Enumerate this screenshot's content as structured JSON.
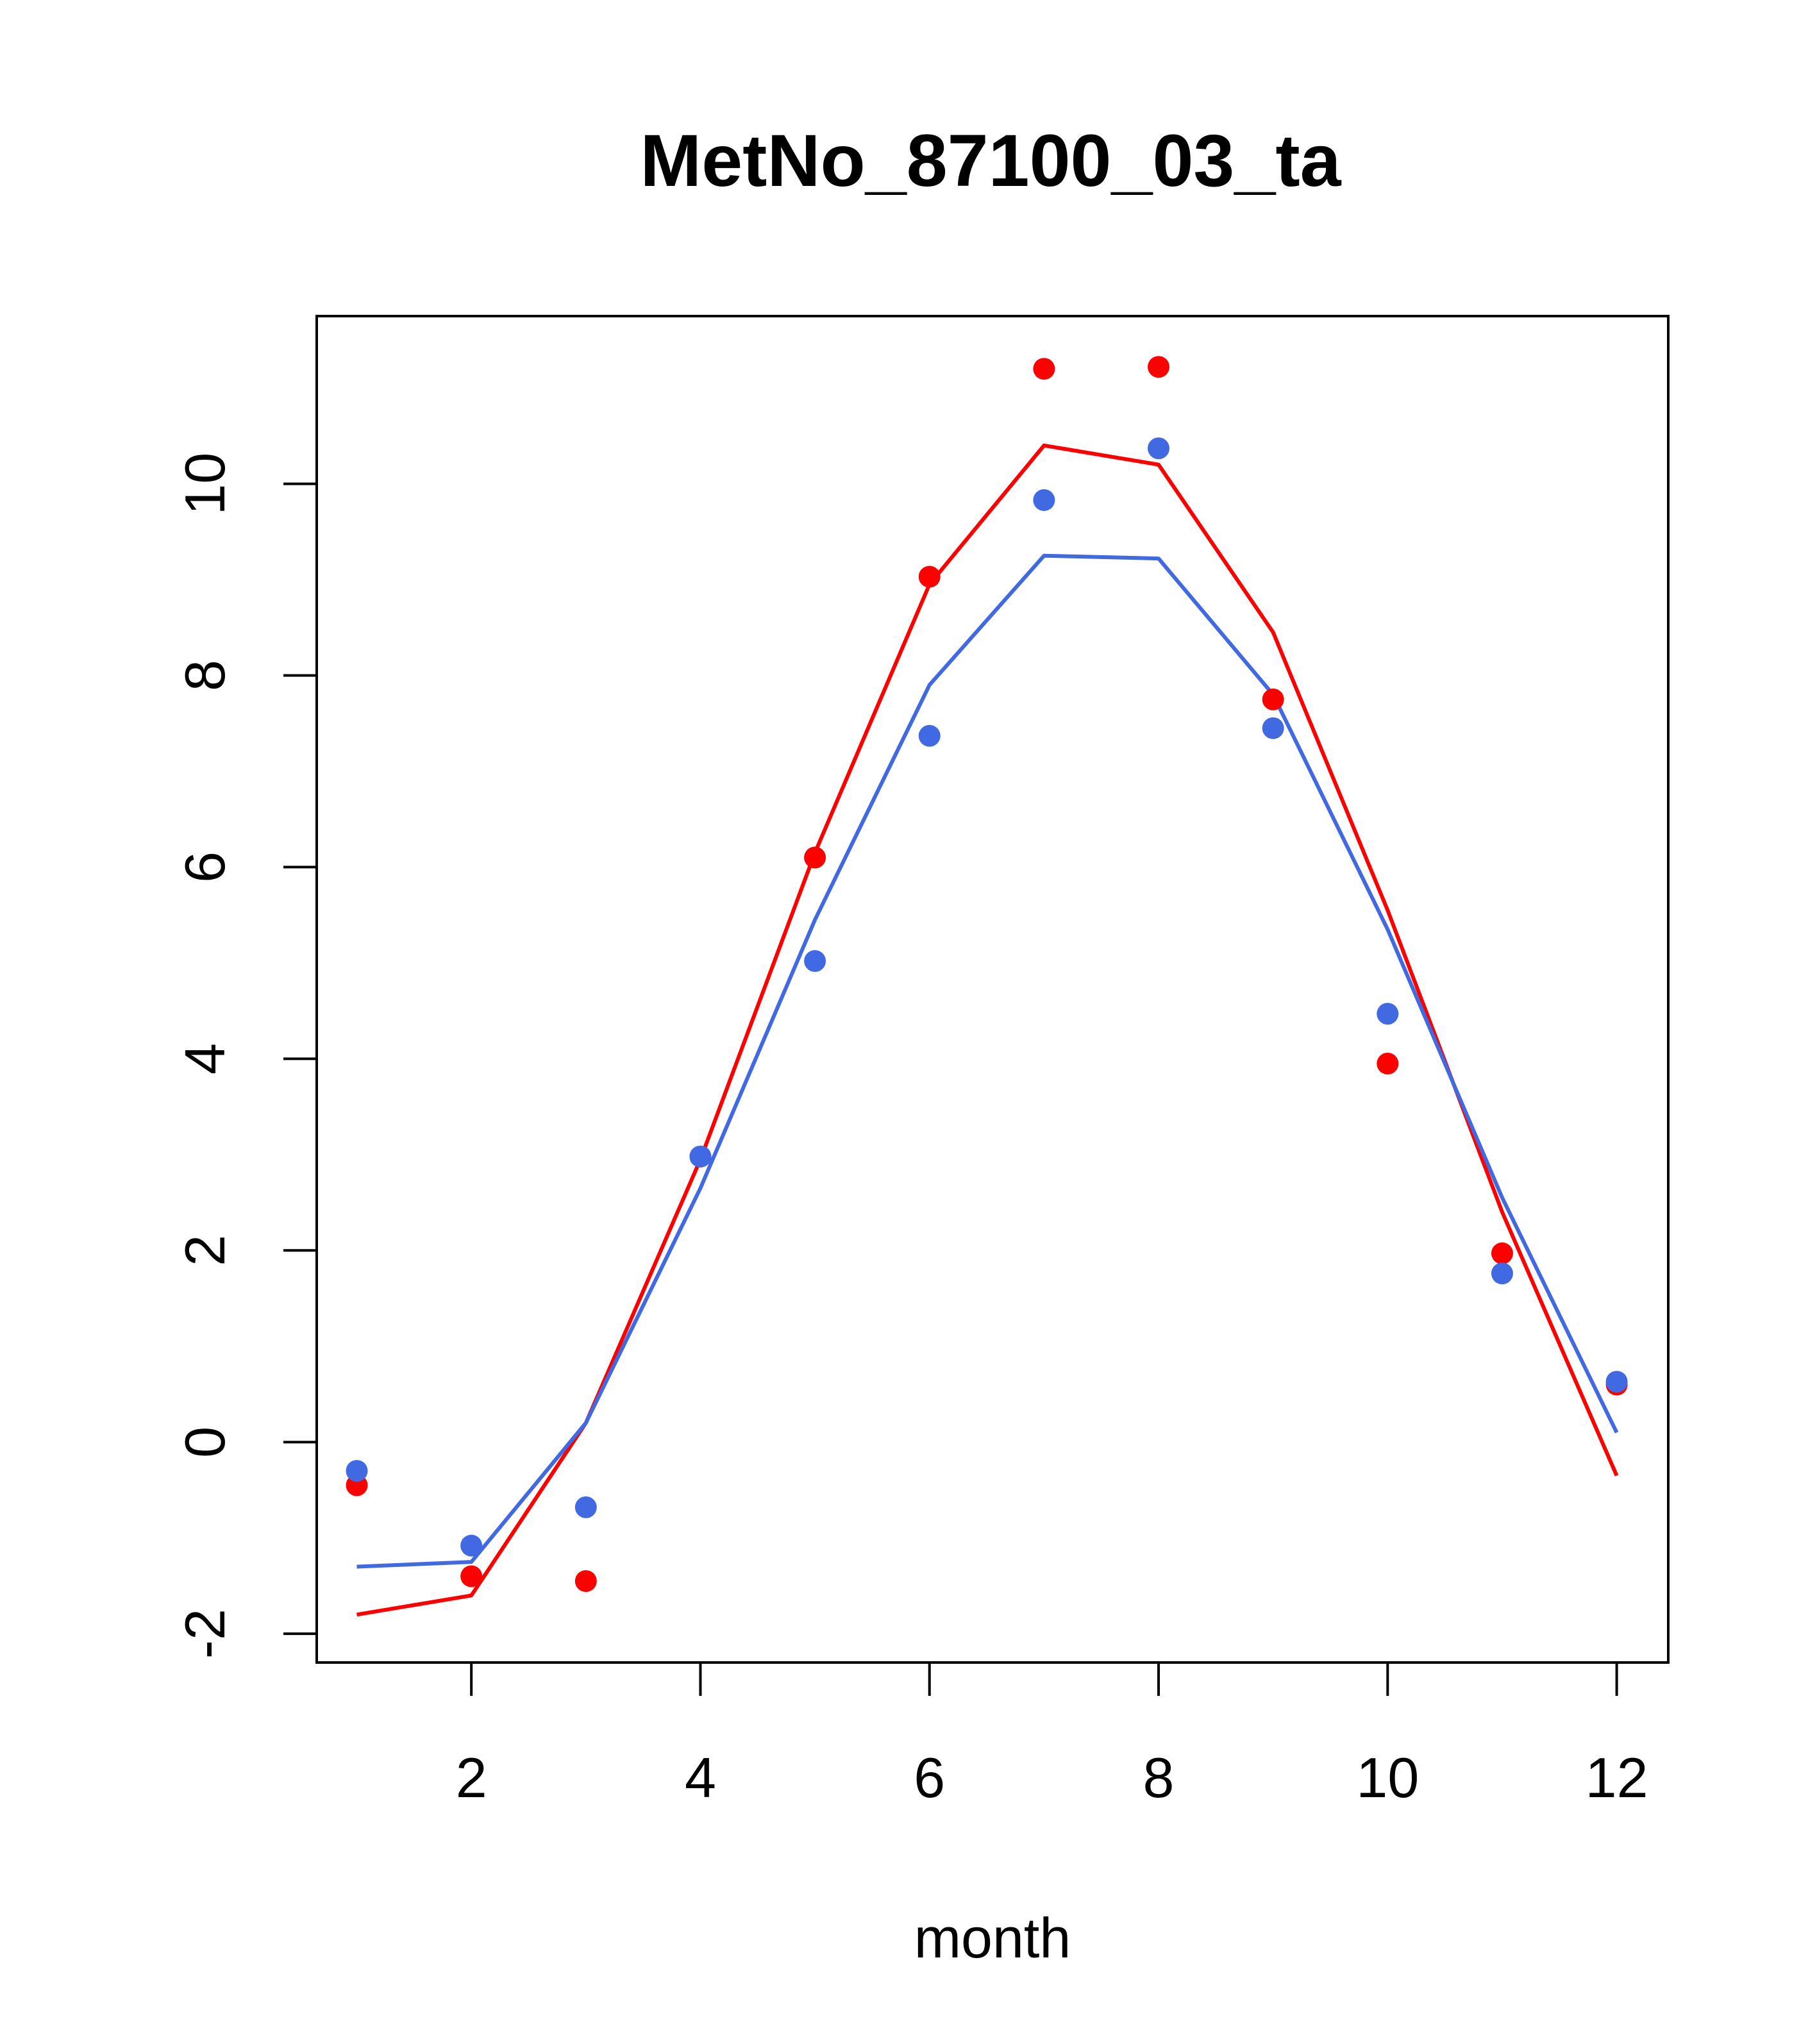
{
  "chart_data": {
    "type": "line",
    "title": "MetNo_87100_03_ta",
    "xlabel": "month",
    "ylabel": "",
    "xlim": [
      0.65,
      12.45
    ],
    "ylim": [
      -2.3,
      11.75
    ],
    "x_ticks": [
      2,
      4,
      6,
      8,
      10,
      12
    ],
    "y_ticks": [
      -2,
      0,
      2,
      4,
      6,
      8,
      10
    ],
    "grid": false,
    "legend": "none",
    "x": [
      1,
      2,
      3,
      4,
      5,
      6,
      7,
      8,
      9,
      10,
      11,
      12
    ],
    "series": [
      {
        "color": "#ff0000",
        "kind": "line",
        "values": [
          -1.8,
          -1.6,
          0.2,
          2.95,
          6.15,
          8.95,
          10.4,
          10.2,
          8.45,
          5.55,
          2.4,
          -0.35
        ]
      },
      {
        "color": "#4169e1",
        "kind": "line",
        "values": [
          -1.3,
          -1.25,
          0.2,
          2.65,
          5.45,
          7.9,
          9.25,
          9.22,
          7.8,
          5.35,
          2.55,
          0.1
        ]
      },
      {
        "color": "#ff0000",
        "kind": "points",
        "values": [
          -0.45,
          -1.4,
          -1.45,
          2.98,
          6.1,
          9.03,
          11.2,
          11.22,
          7.75,
          3.95,
          1.97,
          0.6
        ]
      },
      {
        "color": "#4169e1",
        "kind": "points",
        "values": [
          -0.3,
          -1.08,
          -0.68,
          2.98,
          5.02,
          7.37,
          9.83,
          10.37,
          7.45,
          4.47,
          1.76,
          0.63
        ]
      }
    ]
  }
}
